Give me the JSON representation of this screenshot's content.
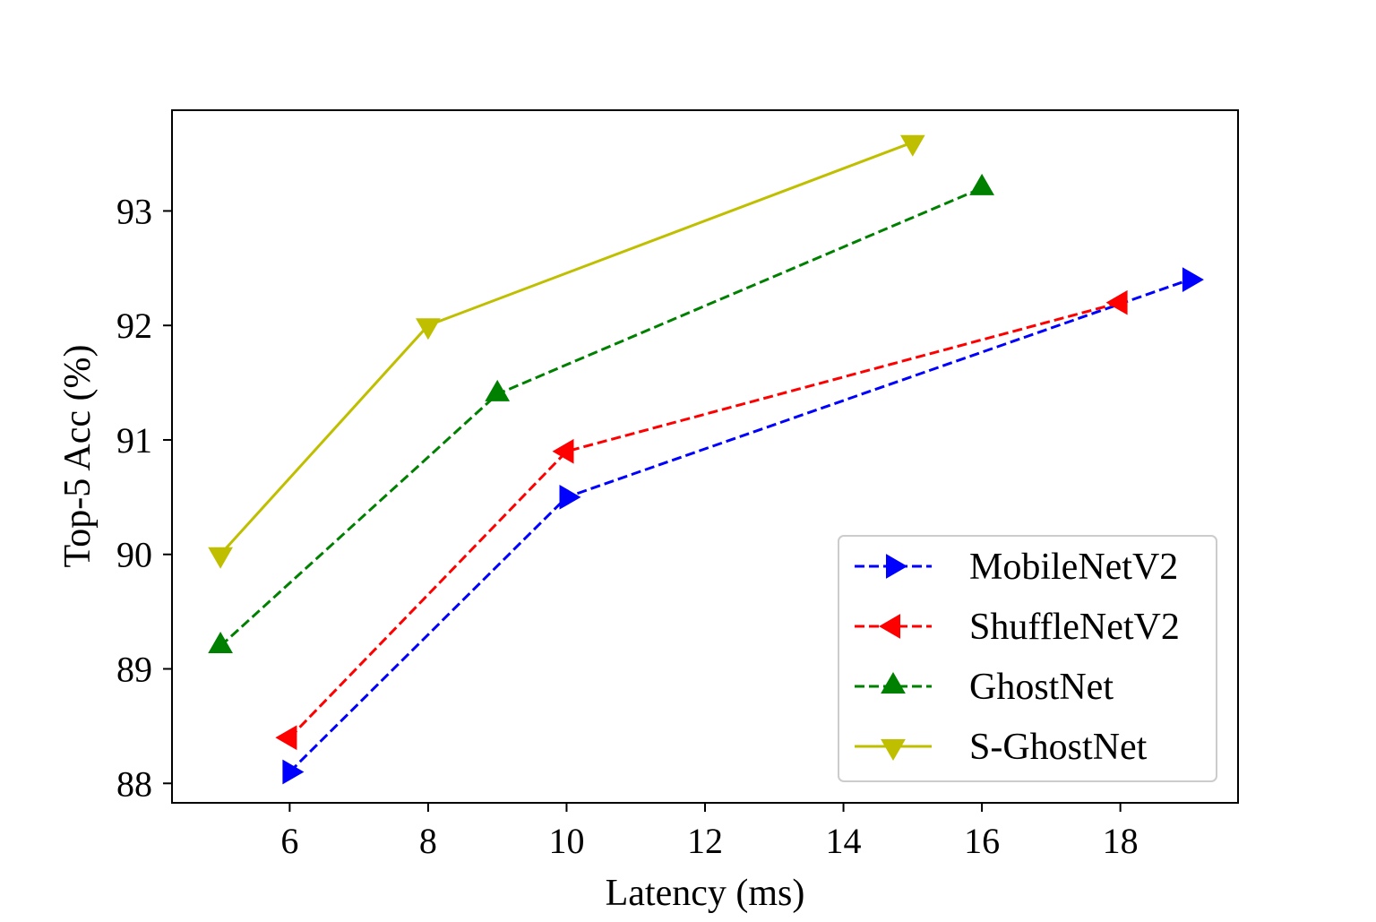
{
  "chart_data": {
    "type": "line",
    "title": "",
    "xlabel": "Latency (ms)",
    "ylabel": "Top-5 Acc (%)",
    "xlim": [
      4.3,
      19.7
    ],
    "ylim": [
      87.83,
      93.88
    ],
    "xticks": [
      6,
      8,
      10,
      12,
      14,
      16,
      18
    ],
    "yticks": [
      88,
      89,
      90,
      91,
      92,
      93
    ],
    "grid": false,
    "legend_position": "lower-right",
    "series": [
      {
        "name": "MobileNetV2",
        "color": "#0000ff",
        "line_style": "dashed",
        "marker": "triangle-right",
        "x": [
          6,
          10,
          19
        ],
        "y": [
          88.1,
          90.5,
          92.4
        ]
      },
      {
        "name": "ShuffleNetV2",
        "color": "#ff0000",
        "line_style": "dashed",
        "marker": "triangle-left",
        "x": [
          6,
          10,
          18
        ],
        "y": [
          88.4,
          90.9,
          92.2
        ]
      },
      {
        "name": "GhostNet",
        "color": "#008000",
        "line_style": "dashed",
        "marker": "triangle-up",
        "x": [
          5,
          9,
          16
        ],
        "y": [
          89.2,
          91.4,
          93.2
        ]
      },
      {
        "name": "S-GhostNet",
        "color": "#bfbf00",
        "line_style": "solid",
        "marker": "triangle-down",
        "x": [
          5,
          8,
          15
        ],
        "y": [
          90.0,
          92.0,
          93.6
        ]
      }
    ]
  }
}
